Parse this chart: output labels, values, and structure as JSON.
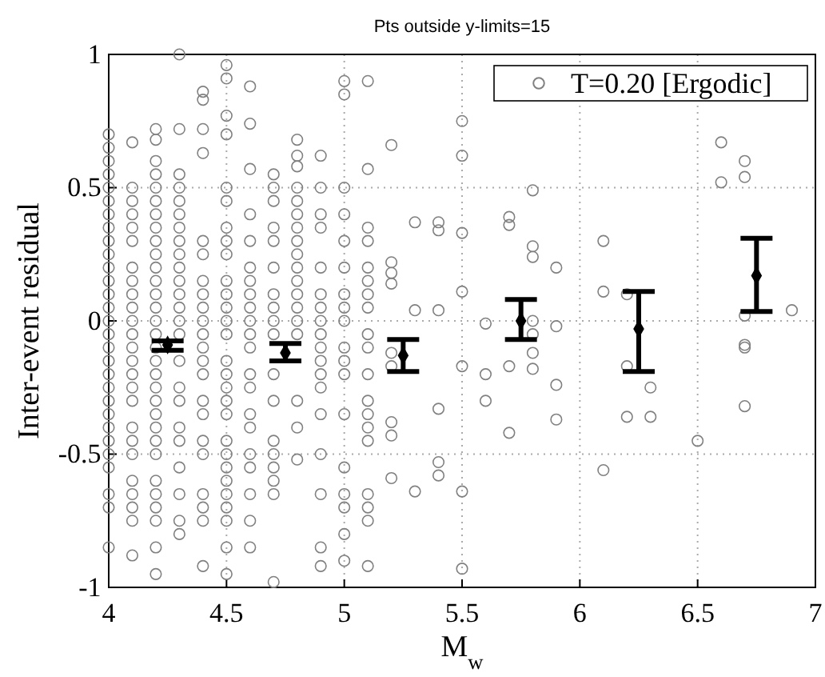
{
  "chart_data": {
    "type": "scatter",
    "title": "Pts outside y-limits=15",
    "xlabel": "M$_{w}$",
    "ylabel": "Inter-event residual",
    "xlim": [
      4,
      7
    ],
    "xticks": [
      4,
      4.5,
      5,
      5.5,
      6,
      6.5,
      7
    ],
    "ylim": [
      -1,
      1
    ],
    "yticks": [
      -1,
      -0.5,
      0,
      0.5,
      1
    ],
    "grid": true,
    "legend": "top right",
    "marker": "circle",
    "series": [
      {
        "name": "T=0.20 [Ergodic]",
        "color": "#808080",
        "x": [
          4,
          4,
          4,
          4,
          4,
          4,
          4,
          4,
          4,
          4,
          4,
          4,
          4,
          4,
          4,
          4,
          4,
          4,
          4,
          4,
          4,
          4,
          4,
          4,
          4,
          4,
          4,
          4,
          4,
          4.1,
          4.1,
          4.1,
          4.1,
          4.1,
          4.1,
          4.1,
          4.1,
          4.1,
          4.1,
          4.1,
          4.1,
          4.1,
          4.1,
          4.1,
          4.1,
          4.1,
          4.1,
          4.1,
          4.1,
          4.1,
          4.1,
          4.1,
          4.1,
          4.1,
          4.2,
          4.2,
          4.2,
          4.2,
          4.2,
          4.2,
          4.2,
          4.2,
          4.2,
          4.2,
          4.2,
          4.2,
          4.2,
          4.2,
          4.2,
          4.2,
          4.2,
          4.2,
          4.2,
          4.2,
          4.2,
          4.2,
          4.2,
          4.2,
          4.2,
          4.2,
          4.2,
          4.2,
          4.2,
          4.2,
          4.2,
          4.3,
          4.3,
          4.3,
          4.3,
          4.3,
          4.3,
          4.3,
          4.3,
          4.3,
          4.3,
          4.3,
          4.3,
          4.3,
          4.3,
          4.3,
          4.3,
          4.3,
          4.3,
          4.3,
          4.3,
          4.3,
          4.3,
          4.3,
          4.3,
          4.4,
          4.4,
          4.4,
          4.4,
          4.4,
          4.4,
          4.4,
          4.4,
          4.4,
          4.4,
          4.4,
          4.4,
          4.4,
          4.4,
          4.4,
          4.4,
          4.4,
          4.4,
          4.4,
          4.4,
          4.4,
          4.4,
          4.5,
          4.5,
          4.5,
          4.5,
          4.5,
          4.5,
          4.5,
          4.5,
          4.5,
          4.5,
          4.5,
          4.5,
          4.5,
          4.5,
          4.5,
          4.5,
          4.5,
          4.5,
          4.5,
          4.5,
          4.5,
          4.5,
          4.5,
          4.5,
          4.5,
          4.5,
          4.5,
          4.5,
          4.6,
          4.6,
          4.6,
          4.6,
          4.6,
          4.6,
          4.6,
          4.6,
          4.6,
          4.6,
          4.6,
          4.6,
          4.6,
          4.6,
          4.6,
          4.6,
          4.6,
          4.6,
          4.6,
          4.6,
          4.6,
          4.7,
          4.7,
          4.7,
          4.7,
          4.7,
          4.7,
          4.7,
          4.7,
          4.7,
          4.7,
          4.7,
          4.7,
          4.7,
          4.7,
          4.7,
          4.7,
          4.7,
          4.7,
          4.8,
          4.8,
          4.8,
          4.8,
          4.8,
          4.8,
          4.8,
          4.8,
          4.8,
          4.8,
          4.8,
          4.8,
          4.8,
          4.8,
          4.8,
          4.8,
          4.8,
          4.8,
          4.9,
          4.9,
          4.9,
          4.9,
          4.9,
          4.9,
          4.9,
          4.9,
          4.9,
          4.9,
          4.9,
          4.9,
          4.9,
          4.9,
          4.9,
          4.9,
          4.9,
          4.9,
          5,
          5,
          5,
          5,
          5,
          5,
          5,
          5,
          5,
          5,
          5,
          5,
          5,
          5,
          5,
          5,
          5,
          5,
          5.1,
          5.1,
          5.1,
          5.1,
          5.1,
          5.1,
          5.1,
          5.1,
          5.1,
          5.1,
          5.1,
          5.1,
          5.1,
          5.1,
          5.1,
          5.1,
          5.1,
          5.1,
          5.1,
          5.2,
          5.2,
          5.2,
          5.2,
          5.2,
          5.2,
          5.2,
          5.2,
          5.2,
          5.3,
          5.3,
          5.3,
          5.4,
          5.4,
          5.4,
          5.4,
          5.4,
          5.4,
          5.5,
          5.5,
          5.5,
          5.5,
          5.5,
          5.5,
          5.5,
          5.6,
          5.6,
          5.6,
          5.7,
          5.7,
          5.7,
          5.7,
          5.8,
          5.8,
          5.8,
          5.8,
          5.8,
          5.8,
          5.8,
          5.9,
          5.9,
          5.9,
          5.9,
          6.1,
          6.1,
          6.1,
          6.2,
          6.2,
          6.2,
          6.3,
          6.3,
          6.5,
          6.6,
          6.6,
          6.7,
          6.7,
          6.7,
          6.7,
          6.7,
          6.7,
          6.9
        ],
        "values": [
          0.7,
          0.65,
          0.6,
          0.55,
          0.5,
          0.45,
          0.4,
          0.35,
          0.3,
          0.25,
          0.2,
          0.15,
          0.1,
          0.05,
          0,
          -0.05,
          -0.1,
          -0.15,
          -0.2,
          -0.25,
          -0.3,
          -0.35,
          -0.4,
          -0.45,
          -0.5,
          -0.55,
          -0.65,
          -0.7,
          -0.85,
          0.67,
          0.5,
          0.45,
          0.4,
          0.35,
          0.3,
          0.2,
          0.15,
          0.1,
          0.05,
          0,
          -0.05,
          -0.1,
          -0.15,
          -0.2,
          -0.25,
          -0.3,
          -0.4,
          -0.45,
          -0.5,
          -0.6,
          -0.65,
          -0.7,
          -0.75,
          -0.88,
          0.72,
          0.68,
          0.6,
          0.55,
          0.5,
          0.45,
          0.4,
          0.35,
          0.3,
          0.25,
          0.2,
          0.15,
          0.1,
          0.05,
          0,
          -0.05,
          -0.1,
          -0.15,
          -0.2,
          -0.25,
          -0.3,
          -0.35,
          -0.4,
          -0.45,
          -0.5,
          -0.6,
          -0.65,
          -0.7,
          -0.75,
          -0.85,
          -0.95,
          1.0,
          0.72,
          0.55,
          0.5,
          0.45,
          0.4,
          0.35,
          0.3,
          0.25,
          0.2,
          0.15,
          0.1,
          0.05,
          0,
          -0.05,
          -0.15,
          -0.25,
          -0.3,
          -0.4,
          -0.45,
          -0.55,
          -0.65,
          -0.75,
          -0.8,
          0.86,
          0.83,
          0.72,
          0.63,
          0.3,
          0.25,
          0.15,
          0.1,
          0.05,
          0,
          -0.05,
          -0.1,
          -0.15,
          -0.2,
          -0.3,
          -0.35,
          -0.45,
          -0.5,
          -0.65,
          -0.7,
          -0.75,
          -0.92,
          0.96,
          0.91,
          0.77,
          0.7,
          0.5,
          0.45,
          0.35,
          0.3,
          0.25,
          0.15,
          0.1,
          0.05,
          0,
          -0.05,
          -0.15,
          -0.2,
          -0.25,
          -0.3,
          -0.35,
          -0.45,
          -0.5,
          -0.55,
          -0.6,
          -0.65,
          -0.7,
          -0.75,
          -0.85,
          -0.95,
          0.88,
          0.74,
          0.57,
          0.4,
          0.3,
          0.2,
          0.15,
          0.1,
          0.05,
          0,
          -0.05,
          -0.1,
          -0.2,
          -0.25,
          -0.35,
          -0.4,
          -0.5,
          -0.55,
          -0.65,
          -0.75,
          -0.85,
          0.55,
          0.5,
          0.45,
          0.35,
          0.3,
          0.2,
          0.1,
          0.05,
          0,
          -0.05,
          -0.2,
          -0.3,
          -0.45,
          -0.5,
          -0.55,
          -0.6,
          -0.65,
          -0.98,
          0.68,
          0.62,
          0.58,
          0.5,
          0.45,
          0.4,
          0.35,
          0.3,
          0.25,
          0.2,
          0.15,
          0.1,
          0.05,
          0,
          -0.05,
          -0.3,
          -0.4,
          -0.52,
          0.62,
          0.5,
          0.4,
          0.35,
          0.2,
          0.1,
          0.05,
          0,
          -0.05,
          -0.1,
          -0.15,
          -0.2,
          -0.25,
          -0.35,
          -0.5,
          -0.65,
          -0.85,
          -0.92,
          0.9,
          0.85,
          0.5,
          0.4,
          0.3,
          0.2,
          0.1,
          0.05,
          0,
          -0.1,
          -0.15,
          -0.2,
          -0.35,
          -0.55,
          -0.65,
          -0.7,
          -0.8,
          -0.9,
          0.9,
          0.57,
          0.35,
          0.3,
          0.2,
          0.15,
          0.1,
          0.05,
          -0.05,
          -0.1,
          -0.2,
          -0.3,
          -0.35,
          -0.4,
          -0.45,
          -0.65,
          -0.7,
          -0.75,
          -0.92,
          0.66,
          0.22,
          0.18,
          0.14,
          -0.12,
          -0.17,
          -0.38,
          -0.43,
          -0.59,
          0.37,
          0.04,
          -0.64,
          0.37,
          0.34,
          0.04,
          -0.33,
          -0.53,
          -0.58,
          0.75,
          0.62,
          0.33,
          0.11,
          -0.17,
          -0.64,
          -0.93,
          -0.01,
          -0.2,
          -0.3,
          0.39,
          0.36,
          -0.17,
          -0.42,
          0.49,
          0.28,
          0.24,
          0,
          -0.05,
          -0.12,
          -0.18,
          0.2,
          -0.02,
          -0.24,
          -0.37,
          0.3,
          0.11,
          -0.56,
          0.1,
          -0.17,
          -0.36,
          -0.25,
          -0.36,
          -0.45,
          0.67,
          0.52,
          0.6,
          0.54,
          0.02,
          -0.09,
          -0.1,
          -0.32,
          0.04
        ]
      },
      {
        "color": "#000000",
        "marker": "diamond",
        "x": [
          4.25,
          4.75,
          5.25,
          5.75,
          6.25,
          6.75
        ],
        "values": [
          -0.09,
          -0.12,
          -0.13,
          0,
          -0.03,
          0.17
        ],
        "errors": [
          [
            -0.11,
            -0.075
          ],
          [
            -0.15,
            -0.085
          ],
          [
            -0.19,
            -0.07
          ],
          [
            -0.07,
            0.08
          ],
          [
            -0.19,
            0.11
          ],
          [
            0.035,
            0.31
          ]
        ]
      }
    ]
  }
}
